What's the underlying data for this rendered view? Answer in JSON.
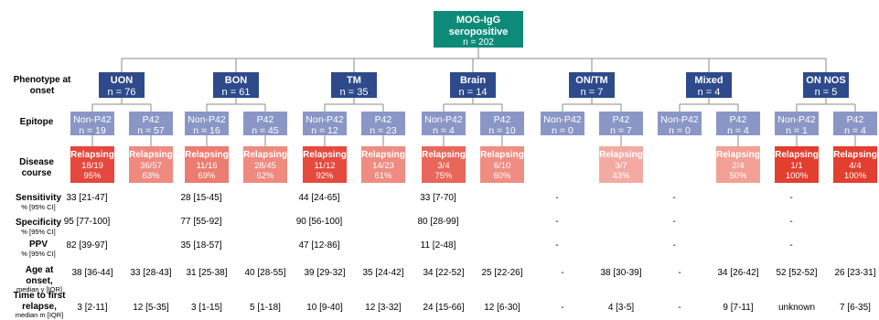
{
  "root": {
    "title_line1": "MOG-IgG",
    "title_line2": "seropositive",
    "n": "n = 202"
  },
  "row_labels": {
    "phenotype": "Phenotype at onset",
    "epitope": "Epitope",
    "disease": "Disease course",
    "sensitivity": "Sensitivity",
    "sensitivity_unit": "% [95% CI]",
    "specificity": "Specificity",
    "specificity_unit": "% [95% CI]",
    "ppv": "PPV",
    "ppv_unit": "% [95% CI]",
    "age": "Age at onset,",
    "age_unit": "median y [IQR]",
    "time": "Time to first relapse,",
    "time_unit": "median m [IQR]"
  },
  "phenotypes": [
    {
      "label": "UON",
      "n": "n = 76",
      "sensitivity": "33 [21-47]",
      "specificity": "95 [77-100]",
      "ppv": "82 [39-97]"
    },
    {
      "label": "BON",
      "n": "n = 61",
      "sensitivity": "28 [15-45]",
      "specificity": "77 [55-92]",
      "ppv": "35 [18-57]"
    },
    {
      "label": "TM",
      "n": "n = 35",
      "sensitivity": "44 [24-65]",
      "specificity": "90 [56-100]",
      "ppv": "47 [12-86]"
    },
    {
      "label": "Brain",
      "n": "n = 14",
      "sensitivity": "33 [7-70]",
      "specificity": "80 [28-99]",
      "ppv": "11 [2-48]"
    },
    {
      "label": "ON/TM",
      "n": "n = 7",
      "sensitivity": "-",
      "specificity": "-",
      "ppv": "-"
    },
    {
      "label": "Mixed",
      "n": "n = 4",
      "sensitivity": "-",
      "specificity": "-",
      "ppv": "-"
    },
    {
      "label": "ON NOS",
      "n": "n = 5",
      "sensitivity": "-",
      "specificity": "-",
      "ppv": "-"
    }
  ],
  "epitopes": [
    {
      "label": "Non-P42",
      "n": "n = 19",
      "disease": {
        "label": "Relapsing",
        "count": "18/19",
        "pct": "95%",
        "color": "#e5483e"
      },
      "age": "38 [36-44]",
      "time": "3 [2-11]"
    },
    {
      "label": "P42",
      "n": "n = 57",
      "disease": {
        "label": "Relapsing",
        "count": "36/57",
        "pct": "63%",
        "color": "#ef8a80"
      },
      "age": "33 [28-43]",
      "time": "12 [5-35]"
    },
    {
      "label": "Non-P42",
      "n": "n = 16",
      "disease": {
        "label": "Relapsing",
        "count": "11/16",
        "pct": "69%",
        "color": "#ec7c70"
      },
      "age": "31 [25-38]",
      "time": "3 [1-15]"
    },
    {
      "label": "P42",
      "n": "n = 45",
      "disease": {
        "label": "Relapsing",
        "count": "28/45",
        "pct": "62%",
        "color": "#ef8a80"
      },
      "age": "40 [28-55]",
      "time": "5 [1-18]"
    },
    {
      "label": "Non-P42",
      "n": "n = 12",
      "disease": {
        "label": "Relapsing",
        "count": "11/12",
        "pct": "92%",
        "color": "#e64a3f"
      },
      "age": "39 [29-32]",
      "time": "10 [9-40]"
    },
    {
      "label": "P42",
      "n": "n = 23",
      "disease": {
        "label": "Relapsing",
        "count": "14/23",
        "pct": "61%",
        "color": "#ef8c82"
      },
      "age": "35 [24-42]",
      "time": "12 [3-32]"
    },
    {
      "label": "Non-P42",
      "n": "n = 4",
      "disease": {
        "label": "Relapsing",
        "count": "3/4",
        "pct": "75%",
        "color": "#e9665a"
      },
      "age": "34 [22-52]",
      "time": "24 [15-66]"
    },
    {
      "label": "P42",
      "n": "n = 10",
      "disease": {
        "label": "Relapsing",
        "count": "6/10",
        "pct": "60%",
        "color": "#ef8d83"
      },
      "age": "25 [22-26]",
      "time": "12 [6-30]"
    },
    {
      "label": "Non-P42",
      "n": "n = 0",
      "disease": null,
      "age": "-",
      "time": "-"
    },
    {
      "label": "P42",
      "n": "n = 7",
      "disease": {
        "label": "Relapsing",
        "count": "3/7",
        "pct": "43%",
        "color": "#f3aaa2"
      },
      "age": "38 [30-39]",
      "time": "4 [3-5]"
    },
    {
      "label": "Non-P42",
      "n": "n = 0",
      "disease": null,
      "age": "-",
      "time": "-"
    },
    {
      "label": "P42",
      "n": "n = 4",
      "disease": {
        "label": "Relapsing",
        "count": "2/4",
        "pct": "50%",
        "color": "#f2a096"
      },
      "age": "34 [26-42]",
      "time": "9 [7-11]"
    },
    {
      "label": "Non-P42",
      "n": "n = 1",
      "disease": {
        "label": "Relapsing",
        "count": "1/1",
        "pct": "100%",
        "color": "#e23f30"
      },
      "age": "52 [52-52]",
      "time": "unknown"
    },
    {
      "label": "P42",
      "n": "n = 4",
      "disease": {
        "label": "Relapsing",
        "count": "4/4",
        "pct": "100%",
        "color": "#e23f30"
      },
      "age": "26 [23-31]",
      "time": "7 [6-35]"
    }
  ],
  "colors": {
    "root": "#0e8a78",
    "phenotype": "#2e4a8b",
    "epitope": "#8a97c6",
    "connector": "#888888"
  }
}
